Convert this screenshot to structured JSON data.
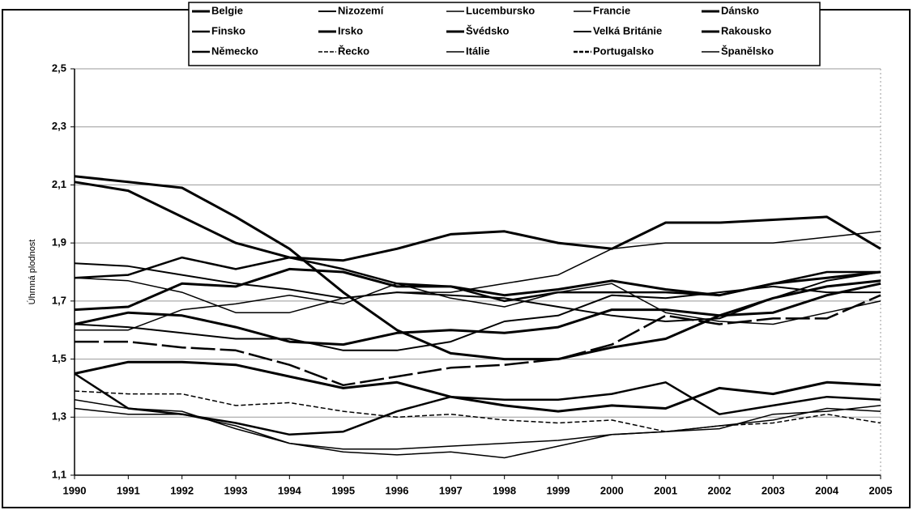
{
  "chart_data": {
    "type": "line",
    "y_label": "Úhrnná plodnost",
    "categories": [
      "1990",
      "1991",
      "1992",
      "1993",
      "1994",
      "1995",
      "1996",
      "1997",
      "1998",
      "1999",
      "2000",
      "2001",
      "2002",
      "2003",
      "2004",
      "2005"
    ],
    "ylim": [
      1.1,
      2.5
    ],
    "yticks": [
      {
        "value": 1.1,
        "label": "1,1"
      },
      {
        "value": 1.3,
        "label": "1,3"
      },
      {
        "value": 1.5,
        "label": "1,5"
      },
      {
        "value": 1.7,
        "label": "1,7"
      },
      {
        "value": 1.9,
        "label": "1,9"
      },
      {
        "value": 2.1,
        "label": "2,1"
      },
      {
        "value": 2.3,
        "label": "2,3"
      },
      {
        "value": 2.5,
        "label": "2,5"
      }
    ],
    "grid": true,
    "legend": "top",
    "series": [
      {
        "name": "Belgie",
        "color": "#000",
        "width": 3,
        "dash": "none",
        "values": [
          1.62,
          1.66,
          1.65,
          1.61,
          1.56,
          1.55,
          1.59,
          1.6,
          1.59,
          1.61,
          1.67,
          1.67,
          1.65,
          1.66,
          1.72,
          1.76
        ]
      },
      {
        "name": "Nizozemí",
        "color": "#000",
        "width": 2,
        "dash": "none",
        "values": [
          1.62,
          1.61,
          1.59,
          1.57,
          1.57,
          1.53,
          1.53,
          1.56,
          1.63,
          1.65,
          1.72,
          1.71,
          1.73,
          1.75,
          1.73,
          1.73
        ]
      },
      {
        "name": "Lucembursko",
        "color": "#000",
        "width": 1.5,
        "dash": "none",
        "values": [
          1.6,
          1.6,
          1.67,
          1.69,
          1.72,
          1.69,
          1.76,
          1.71,
          1.68,
          1.73,
          1.76,
          1.66,
          1.63,
          1.62,
          1.66,
          1.7
        ]
      },
      {
        "name": "Francie",
        "color": "#000",
        "width": 1.5,
        "dash": "none",
        "values": [
          1.78,
          1.77,
          1.73,
          1.66,
          1.66,
          1.71,
          1.73,
          1.73,
          1.76,
          1.79,
          1.88,
          1.9,
          1.9,
          1.9,
          1.92,
          1.94
        ]
      },
      {
        "name": "Dánsko",
        "color": "#000",
        "width": 3,
        "dash": "none",
        "values": [
          1.67,
          1.68,
          1.76,
          1.75,
          1.81,
          1.8,
          1.75,
          1.75,
          1.72,
          1.74,
          1.77,
          1.74,
          1.72,
          1.76,
          1.78,
          1.8
        ]
      },
      {
        "name": "Finsko",
        "color": "#000",
        "width": 2.5,
        "dash": "none",
        "values": [
          1.78,
          1.79,
          1.85,
          1.81,
          1.85,
          1.81,
          1.76,
          1.75,
          1.7,
          1.73,
          1.73,
          1.73,
          1.72,
          1.76,
          1.8,
          1.8
        ]
      },
      {
        "name": "Irsko",
        "color": "#000",
        "width": 3,
        "dash": "none",
        "values": [
          2.11,
          2.08,
          1.99,
          1.9,
          1.85,
          1.84,
          1.88,
          1.93,
          1.94,
          1.9,
          1.88,
          1.97,
          1.97,
          1.98,
          1.99,
          1.88
        ]
      },
      {
        "name": "Švédsko",
        "color": "#000",
        "width": 3,
        "dash": "none",
        "values": [
          2.13,
          2.11,
          2.09,
          1.99,
          1.88,
          1.73,
          1.6,
          1.52,
          1.5,
          1.5,
          1.54,
          1.57,
          1.65,
          1.71,
          1.75,
          1.77
        ]
      },
      {
        "name": "Velká Británie",
        "color": "#000",
        "width": 2,
        "dash": "none",
        "values": [
          1.83,
          1.82,
          1.79,
          1.76,
          1.74,
          1.71,
          1.73,
          1.72,
          1.71,
          1.68,
          1.65,
          1.63,
          1.64,
          1.71,
          1.77,
          1.8
        ]
      },
      {
        "name": "Rakousko",
        "color": "#000",
        "width": 3,
        "dash": "none",
        "values": [
          1.45,
          1.49,
          1.49,
          1.48,
          1.44,
          1.4,
          1.42,
          1.37,
          1.34,
          1.32,
          1.34,
          1.33,
          1.4,
          1.38,
          1.42,
          1.41
        ]
      },
      {
        "name": "Německo",
        "color": "#000",
        "width": 2.5,
        "dash": "none",
        "values": [
          1.45,
          1.33,
          1.31,
          1.28,
          1.24,
          1.25,
          1.32,
          1.37,
          1.36,
          1.36,
          1.38,
          1.42,
          1.31,
          1.34,
          1.37,
          1.36
        ]
      },
      {
        "name": "Řecko",
        "color": "#000",
        "width": 1.5,
        "dash": "6 3",
        "values": [
          1.39,
          1.38,
          1.38,
          1.34,
          1.35,
          1.32,
          1.3,
          1.31,
          1.29,
          1.28,
          1.29,
          1.25,
          1.27,
          1.28,
          1.31,
          1.28
        ]
      },
      {
        "name": "Itálie",
        "color": "#000",
        "width": 1.5,
        "dash": "none",
        "values": [
          1.33,
          1.31,
          1.31,
          1.27,
          1.21,
          1.19,
          1.19,
          1.2,
          1.21,
          1.22,
          1.24,
          1.25,
          1.27,
          1.29,
          1.33,
          1.32
        ]
      },
      {
        "name": "Portugalsko",
        "color": "#000",
        "width": 2.5,
        "dash": "30 6",
        "values": [
          1.56,
          1.56,
          1.54,
          1.53,
          1.48,
          1.41,
          1.44,
          1.47,
          1.48,
          1.5,
          1.55,
          1.65,
          1.62,
          1.64,
          1.64,
          1.72
        ]
      },
      {
        "name": "Španělsko",
        "color": "#000",
        "width": 1.5,
        "dash": "none",
        "values": [
          1.36,
          1.33,
          1.32,
          1.26,
          1.21,
          1.18,
          1.17,
          1.18,
          1.16,
          1.2,
          1.24,
          1.25,
          1.26,
          1.31,
          1.32,
          1.34
        ]
      }
    ]
  }
}
